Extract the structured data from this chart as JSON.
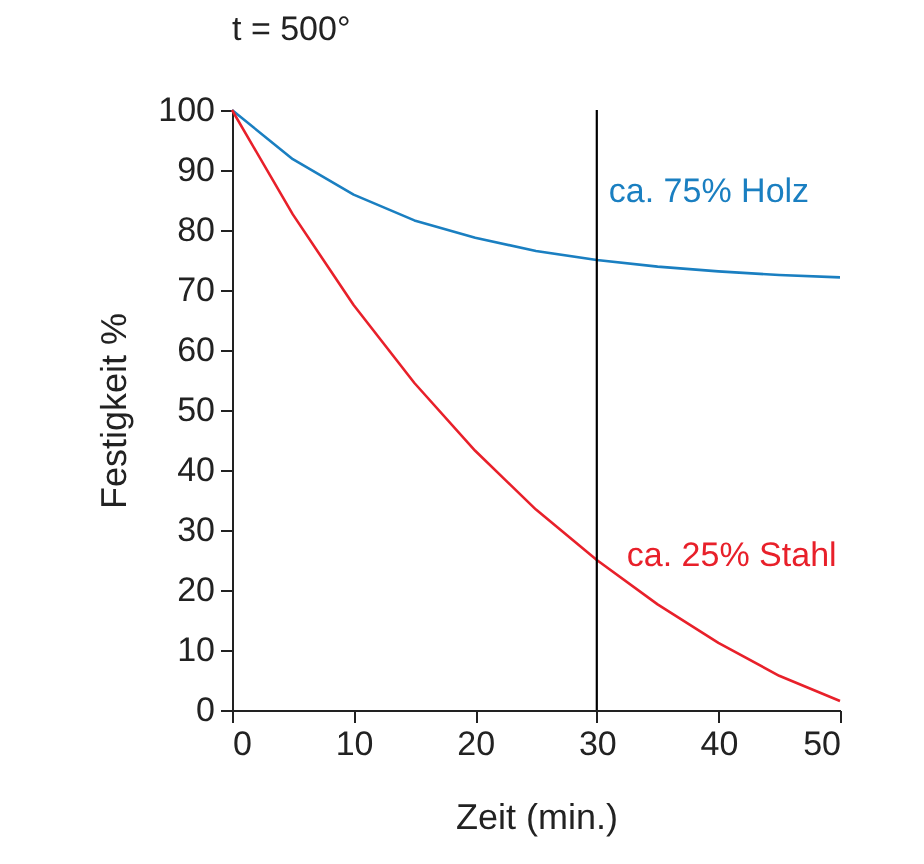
{
  "chart_data": {
    "type": "line",
    "title": "t = 500°",
    "xlabel": "Zeit (min.)",
    "ylabel": "Festigkeit %",
    "x": [
      0,
      5,
      10,
      15,
      20,
      25,
      30,
      35,
      40,
      45,
      50
    ],
    "series": [
      {
        "name": "ca. 75% Holz",
        "color": "#1a7fc1",
        "values": [
          100,
          91.8,
          85.9,
          81.6,
          78.7,
          76.5,
          75,
          73.9,
          73.1,
          72.5,
          72.1
        ]
      },
      {
        "name": "ca. 25% Stahl",
        "color": "#e8202a",
        "values": [
          100,
          82.6,
          67.5,
          54.5,
          43.2,
          33.4,
          25,
          17.6,
          11.2,
          5.7,
          1.5
        ]
      }
    ],
    "xlim": [
      0,
      50
    ],
    "xticks": [
      0,
      10,
      20,
      30,
      40,
      50
    ],
    "ylim": [
      0,
      100
    ],
    "yticks": [
      0,
      10,
      20,
      30,
      40,
      50,
      60,
      70,
      80,
      90,
      100
    ],
    "ref_lines": [
      {
        "axis": "x",
        "value": 30,
        "color": "#000000"
      }
    ],
    "grid": false,
    "legend": false,
    "marker": "none",
    "line_style": "solid"
  }
}
